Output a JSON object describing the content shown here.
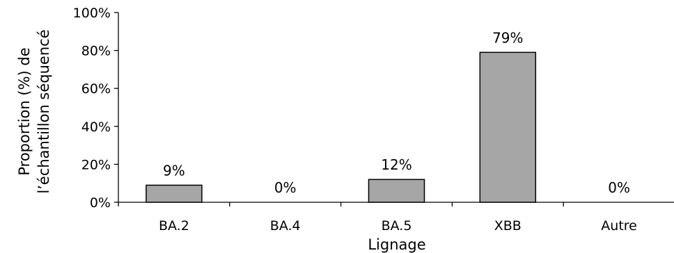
{
  "chart_data": {
    "type": "bar",
    "categories": [
      "BA.2",
      "BA.4",
      "BA.5",
      "XBB",
      "Autre"
    ],
    "values": [
      9,
      0,
      12,
      79,
      0
    ],
    "data_labels": [
      "9%",
      "0%",
      "12%",
      "79%",
      "0%"
    ],
    "ylim": [
      0,
      100
    ],
    "yticks": [
      0,
      20,
      40,
      60,
      80,
      100
    ],
    "ytick_labels": [
      "0%",
      "20%",
      "40%",
      "60%",
      "80%",
      "100%"
    ],
    "xlabel": "Lignage",
    "ylabel_lines": [
      "Proportion (%) de",
      "l’échantillon séquencé"
    ],
    "grid": false,
    "legend": "none",
    "colors": {
      "bar_fill": "#a6a6a6",
      "bar_stroke": "#000000",
      "axis": "#000000"
    }
  }
}
